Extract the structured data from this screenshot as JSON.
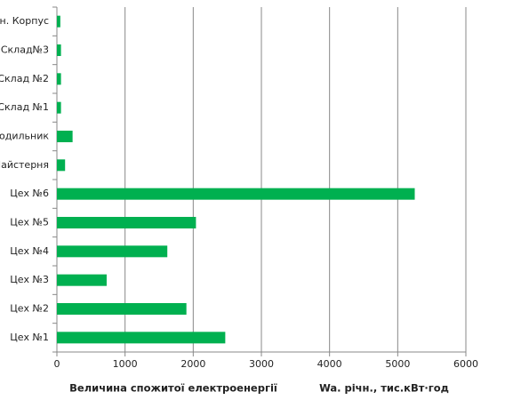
{
  "chart_data": {
    "type": "hbar",
    "categories": [
      "Цех №1",
      "Цех №2",
      "Цех №3",
      "Цех №4",
      "Цех №5",
      "Цех №6",
      "Майстерня",
      "одильник",
      "Склад №1",
      "Склад №2",
      "Склад№3",
      "ін. Корпус"
    ],
    "values": [
      2470,
      1900,
      730,
      1620,
      2040,
      5250,
      120,
      230,
      60,
      60,
      60,
      50
    ],
    "color": "#00b050",
    "xlim": [
      0,
      6000
    ],
    "xticks": [
      0,
      1000,
      2000,
      3000,
      4000,
      5000,
      6000
    ],
    "grid": true,
    "x_label": "Величина спожитої електроенергії",
    "x_unit_label": "Wa. річн., тис.кВт·год"
  }
}
